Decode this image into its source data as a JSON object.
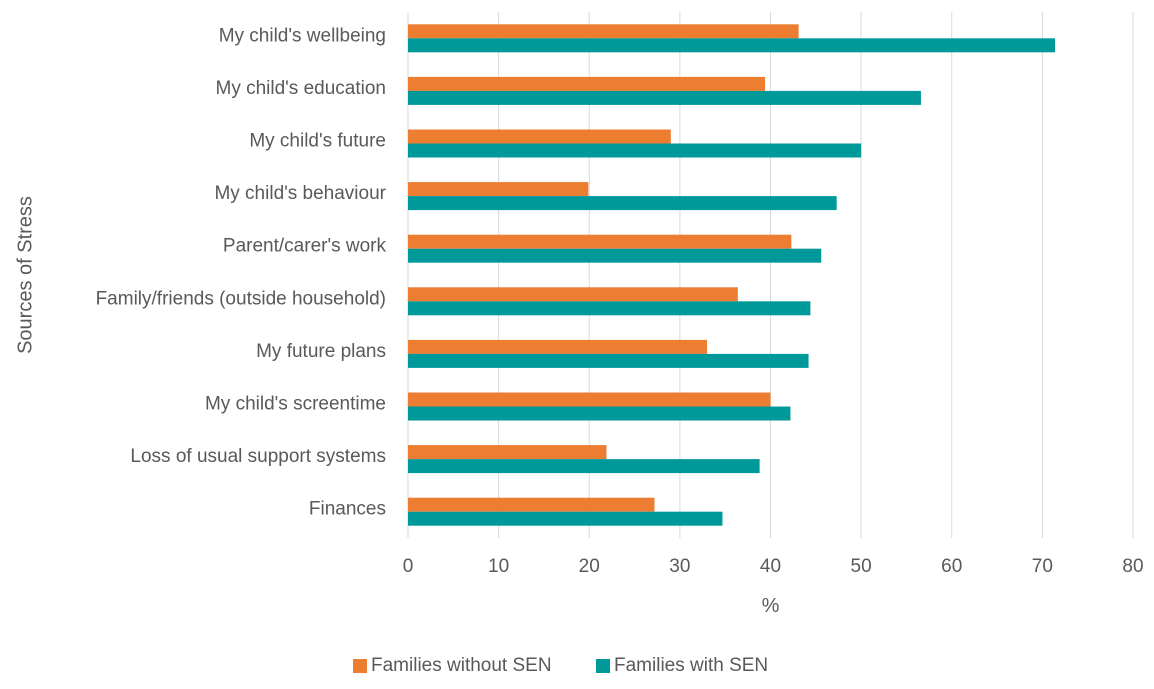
{
  "chart_data": {
    "type": "bar",
    "orientation": "horizontal",
    "title": "",
    "xlabel": "%",
    "ylabel": "Sources of Stress",
    "xlim": [
      0,
      80
    ],
    "xticks": [
      0,
      10,
      20,
      30,
      40,
      50,
      60,
      70,
      80
    ],
    "grid": "vertical",
    "legend_position": "bottom",
    "categories": [
      "Finances",
      "Loss of usual support systems",
      "My child's screentime",
      "My future plans",
      "Family/friends (outside household)",
      "Parent/carer's work",
      "My child's behaviour",
      "My child's future",
      "My child's education",
      "My child's wellbeing"
    ],
    "series": [
      {
        "name": "Families without SEN",
        "color": "#ED7D31",
        "values": [
          27.2,
          21.9,
          40.0,
          33.0,
          36.4,
          42.3,
          19.9,
          29.0,
          39.4,
          43.1
        ]
      },
      {
        "name": "Families with SEN",
        "color": "#00999A",
        "values": [
          34.7,
          38.8,
          42.2,
          44.2,
          44.4,
          45.6,
          47.3,
          50.0,
          56.6,
          71.4
        ]
      }
    ]
  }
}
